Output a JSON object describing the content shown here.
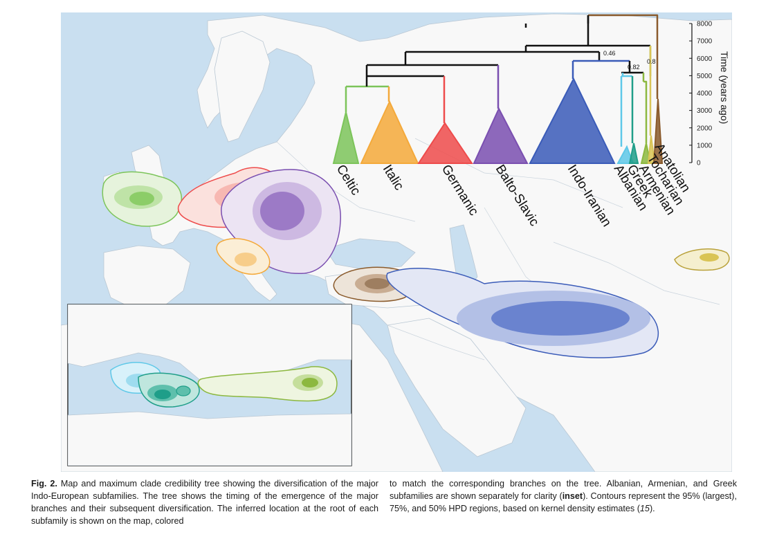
{
  "figure": {
    "tree": {
      "axis_title": "Time (years ago)",
      "time_ticks": [
        "8000",
        "7000",
        "6000",
        "5000",
        "4000",
        "3000",
        "2000",
        "1000",
        "0"
      ],
      "node_support": [
        "0.46",
        "0.82",
        "0.8"
      ],
      "clades": [
        {
          "name": "Celtic",
          "color": "#7cc45a"
        },
        {
          "name": "Italic",
          "color": "#f4a93a"
        },
        {
          "name": "Germanic",
          "color": "#ee4b4b"
        },
        {
          "name": "Balto-Slavic",
          "color": "#7a4fb0"
        },
        {
          "name": "Indo-Iranian",
          "color": "#3a5bb8"
        },
        {
          "name": "Albanian",
          "color": "#5ec8e8"
        },
        {
          "name": "Greek",
          "color": "#1f9e89"
        },
        {
          "name": "Armenian",
          "color": "#8cb83f"
        },
        {
          "name": "Tocharian",
          "color": "#d9c455"
        },
        {
          "name": "Anatolian",
          "color": "#8a5a2b"
        }
      ]
    },
    "map": {
      "sea_color": "#c9dff0",
      "land_color": "#f8f8f8",
      "inset_label": "inset"
    }
  },
  "caption": {
    "fig_label": "Fig. 2.",
    "left_text": " Map and maximum clade credibility tree showing the diversification of the major Indo-European subfamilies. The tree shows the timing of the emergence of the major branches and their subsequent diversification. The inferred location at the root of each subfamily is shown on the map, colored",
    "right_text_1": "to match the corresponding branches on the tree. Albanian, Armenian, and Greek subfamilies are shown separately for clarity (",
    "right_bold": "inset",
    "right_text_2": "). Contours represent the 95% (largest), 75%, and 50% HPD regions, based on kernel density estimates (",
    "right_italic": "15",
    "right_text_3": ")."
  }
}
